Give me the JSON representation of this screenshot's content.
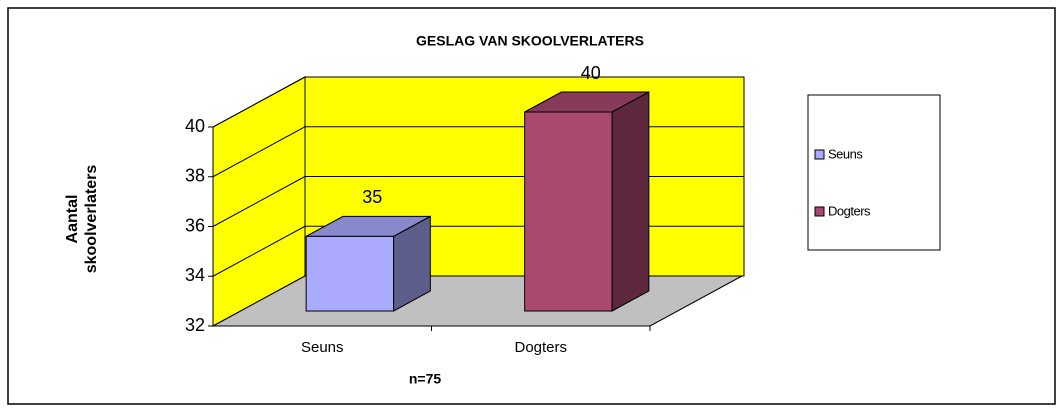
{
  "chart_data": {
    "type": "bar3d",
    "title": "GESLAG VAN SKOOLVERLATERS",
    "y_label": "Aantal skoolverlaters",
    "x_label": "n=75",
    "categories": [
      "Seuns",
      "Dogters"
    ],
    "values": [
      35,
      40
    ],
    "colors": [
      "#aaaaff",
      "#a9496f"
    ],
    "ylim": [
      32,
      40
    ],
    "yticks": [
      32,
      34,
      36,
      38,
      40
    ],
    "grid": true,
    "wall_color": "#ffff00",
    "floor_color": "#c0c0c0",
    "legend": "right"
  }
}
